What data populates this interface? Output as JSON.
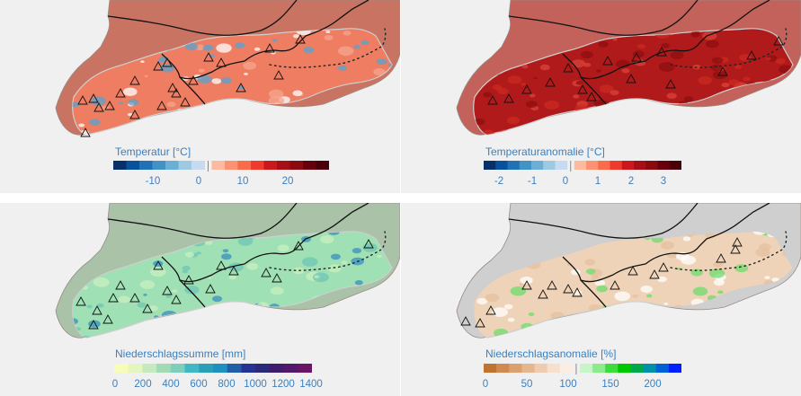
{
  "panels": [
    {
      "id": "temperature",
      "colorbar_label": "Temperatur [°C]",
      "scale": "diverging",
      "tick_labels": [
        "-10",
        "0",
        "10",
        "20"
      ],
      "neg_colors": [
        "#08306b",
        "#08519c",
        "#2171b5",
        "#4292c6",
        "#6baed6",
        "#9ecae1",
        "#c6dbef"
      ],
      "pos_colors": [
        "#fcbba1",
        "#fc9272",
        "#fb6a4a",
        "#ef3b2c",
        "#cb181d",
        "#a50f15",
        "#8b0a10",
        "#67000d",
        "#4a0008"
      ],
      "outside_color": "#c97462",
      "region_colors": [
        "#ee7d62",
        "#f5a58f",
        "#5aa3cf",
        "#ffffff"
      ]
    },
    {
      "id": "temperature_anomaly",
      "colorbar_label": "Temperaturanomalie [°C]",
      "scale": "diverging",
      "tick_labels": [
        "-2",
        "-1",
        "0",
        "1",
        "2",
        "3"
      ],
      "neg_colors": [
        "#08306b",
        "#08519c",
        "#2171b5",
        "#4292c6",
        "#6baed6",
        "#9ecae1",
        "#c6dbef"
      ],
      "pos_colors": [
        "#fcbba1",
        "#fc9272",
        "#fb6a4a",
        "#ef3b2c",
        "#cb181d",
        "#a50f15",
        "#8b0a10",
        "#67000d",
        "#4a0008"
      ],
      "outside_color": "#c3625a",
      "region_colors": [
        "#b01a1a",
        "#cc2a22",
        "#8f0f12",
        "#d9443a"
      ]
    },
    {
      "id": "precipitation",
      "colorbar_label": "Niederschlagssumme [mm]",
      "scale": "sequential",
      "tick_labels": [
        "0",
        "200",
        "400",
        "600",
        "800",
        "1000",
        "1200",
        "1400"
      ],
      "colors": [
        "#f7fcb9",
        "#e5f5c0",
        "#c7e9c0",
        "#a1dab4",
        "#7fcdbb",
        "#41b6c4",
        "#2c9fb8",
        "#1d91c0",
        "#225ea8",
        "#253494",
        "#2a2a7a",
        "#3f1d6e",
        "#54186a",
        "#6a1466"
      ],
      "outside_color": "#a9c2a8",
      "region_colors": [
        "#9fe0b4",
        "#6dc6b6",
        "#3a8fbf",
        "#c9f0c0"
      ]
    },
    {
      "id": "precipitation_anomaly",
      "colorbar_label": "Niederschlagsanomalie [%]",
      "scale": "diverging",
      "tick_labels": [
        "0",
        "50",
        "100",
        "150",
        "200"
      ],
      "neg_colors": [
        "#c0722f",
        "#d08a4f",
        "#dca06f",
        "#e6b68f",
        "#efcbb0",
        "#f6dfcd",
        "#faeee4"
      ],
      "pos_colors": [
        "#c7f5c7",
        "#8ceb8c",
        "#3ddc3d",
        "#00c800",
        "#00a84a",
        "#0090a8",
        "#0060d8",
        "#0020ff"
      ],
      "outside_color": "#cfcfcf",
      "region_colors": [
        "#efd3b8",
        "#e5c09e",
        "#ffffff",
        "#6fdc6f"
      ]
    }
  ]
}
